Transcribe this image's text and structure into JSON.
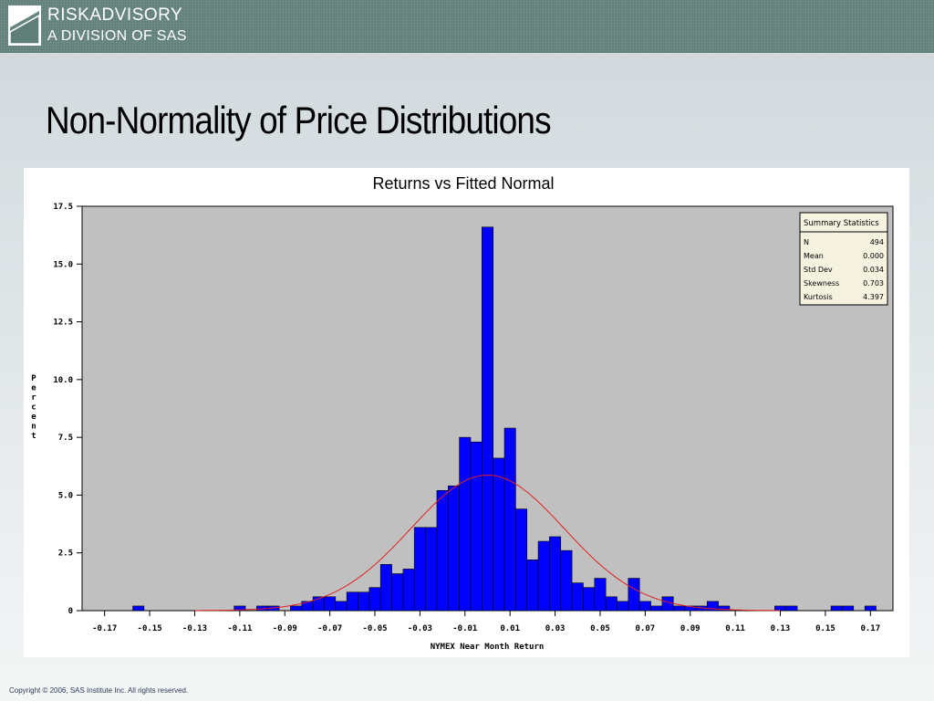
{
  "header": {
    "logo_line1": "RISKADVISORY",
    "logo_line2": "A DIVISION OF SAS"
  },
  "slide": {
    "title": "Non-Normality of Price Distributions"
  },
  "footer": {
    "copyright": "Copyright © 2006, SAS Institute Inc. All rights reserved."
  },
  "colors": {
    "bar": "#0000ff",
    "curve": "#e02020",
    "plot_background": "#c0c0c0"
  },
  "chart_data": {
    "type": "bar",
    "title": "Returns vs Fitted Normal",
    "xlabel": "NYMEX Near Month Return",
    "ylabel": "Percent",
    "xlim": [
      -0.18,
      0.18
    ],
    "ylim": [
      0,
      17.5
    ],
    "bin_width": 0.005,
    "grid": false,
    "x_ticks": [
      "-0.17",
      "-0.15",
      "-0.13",
      "-0.11",
      "-0.09",
      "-0.07",
      "-0.05",
      "-0.03",
      "-0.01",
      "0.01",
      "0.03",
      "0.05",
      "0.07",
      "0.09",
      "0.11",
      "0.13",
      "0.15",
      "0.17"
    ],
    "y_ticks": [
      "0",
      "2.5",
      "5.0",
      "7.5",
      "10.0",
      "12.5",
      "15.0",
      "17.5"
    ],
    "bins": [
      {
        "x": -0.155,
        "y": 0.2
      },
      {
        "x": -0.11,
        "y": 0.2
      },
      {
        "x": -0.1,
        "y": 0.2
      },
      {
        "x": -0.095,
        "y": 0.2
      },
      {
        "x": -0.085,
        "y": 0.2
      },
      {
        "x": -0.08,
        "y": 0.4
      },
      {
        "x": -0.075,
        "y": 0.6
      },
      {
        "x": -0.07,
        "y": 0.6
      },
      {
        "x": -0.065,
        "y": 0.4
      },
      {
        "x": -0.06,
        "y": 0.8
      },
      {
        "x": -0.055,
        "y": 0.8
      },
      {
        "x": -0.05,
        "y": 1.0
      },
      {
        "x": -0.045,
        "y": 2.0
      },
      {
        "x": -0.04,
        "y": 1.6
      },
      {
        "x": -0.035,
        "y": 1.8
      },
      {
        "x": -0.03,
        "y": 3.6
      },
      {
        "x": -0.025,
        "y": 3.6
      },
      {
        "x": -0.02,
        "y": 5.2
      },
      {
        "x": -0.015,
        "y": 5.4
      },
      {
        "x": -0.01,
        "y": 7.5
      },
      {
        "x": -0.005,
        "y": 7.3
      },
      {
        "x": 0.0,
        "y": 16.6
      },
      {
        "x": 0.005,
        "y": 6.6
      },
      {
        "x": 0.01,
        "y": 7.9
      },
      {
        "x": 0.015,
        "y": 4.4
      },
      {
        "x": 0.02,
        "y": 2.2
      },
      {
        "x": 0.025,
        "y": 3.0
      },
      {
        "x": 0.03,
        "y": 3.2
      },
      {
        "x": 0.035,
        "y": 2.6
      },
      {
        "x": 0.04,
        "y": 1.2
      },
      {
        "x": 0.045,
        "y": 1.0
      },
      {
        "x": 0.05,
        "y": 1.4
      },
      {
        "x": 0.055,
        "y": 0.6
      },
      {
        "x": 0.06,
        "y": 0.4
      },
      {
        "x": 0.065,
        "y": 1.4
      },
      {
        "x": 0.07,
        "y": 0.4
      },
      {
        "x": 0.075,
        "y": 0.2
      },
      {
        "x": 0.08,
        "y": 0.6
      },
      {
        "x": 0.085,
        "y": 0.2
      },
      {
        "x": 0.09,
        "y": 0.2
      },
      {
        "x": 0.095,
        "y": 0.2
      },
      {
        "x": 0.1,
        "y": 0.4
      },
      {
        "x": 0.105,
        "y": 0.2
      },
      {
        "x": 0.13,
        "y": 0.2
      },
      {
        "x": 0.135,
        "y": 0.2
      },
      {
        "x": 0.155,
        "y": 0.2
      },
      {
        "x": 0.16,
        "y": 0.2
      },
      {
        "x": 0.17,
        "y": 0.2
      }
    ],
    "fitted_normal": {
      "mean": 0.0,
      "std_dev": 0.034
    },
    "summary_statistics": {
      "title": "Summary Statistics",
      "rows": [
        {
          "label": "N",
          "value": "494"
        },
        {
          "label": "Mean",
          "value": "0.000"
        },
        {
          "label": "Std Dev",
          "value": "0.034"
        },
        {
          "label": "Skewness",
          "value": "0.703"
        },
        {
          "label": "Kurtosis",
          "value": "4.397"
        }
      ]
    }
  }
}
